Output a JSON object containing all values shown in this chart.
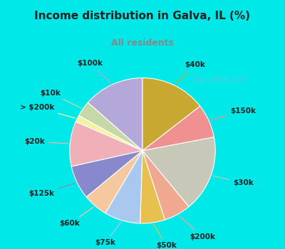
{
  "title": "Income distribution in Galva, IL (%)",
  "subtitle": "All residents",
  "watermark": "City-Data.com",
  "labels": [
    "$100k",
    "$10k",
    "> $200k",
    "$20k",
    "$125k",
    "$60k",
    "$75k",
    "$50k",
    "$200k",
    "$30k",
    "$150k",
    "$40k"
  ],
  "values": [
    13.5,
    3.5,
    1.5,
    10.0,
    7.5,
    5.5,
    8.0,
    5.5,
    6.0,
    17.0,
    7.5,
    14.5
  ],
  "colors": [
    "#b3a8d8",
    "#c5d9a8",
    "#f5f2a0",
    "#f0b0b8",
    "#8888cc",
    "#f5c8a0",
    "#a8c8f0",
    "#e8c050",
    "#f0a890",
    "#c8c8b8",
    "#f09090",
    "#c8a830"
  ],
  "bg_cyan": "#00e8e8",
  "bg_chart": "#e0f5ea",
  "title_color": "#222222",
  "subtitle_color": "#888888",
  "startangle": 90,
  "label_fontsize": 7.5,
  "label_distances": [
    1.32,
    1.38,
    1.35,
    1.35,
    1.35,
    1.32,
    1.32,
    1.32,
    1.35,
    1.32,
    1.32,
    1.32
  ]
}
